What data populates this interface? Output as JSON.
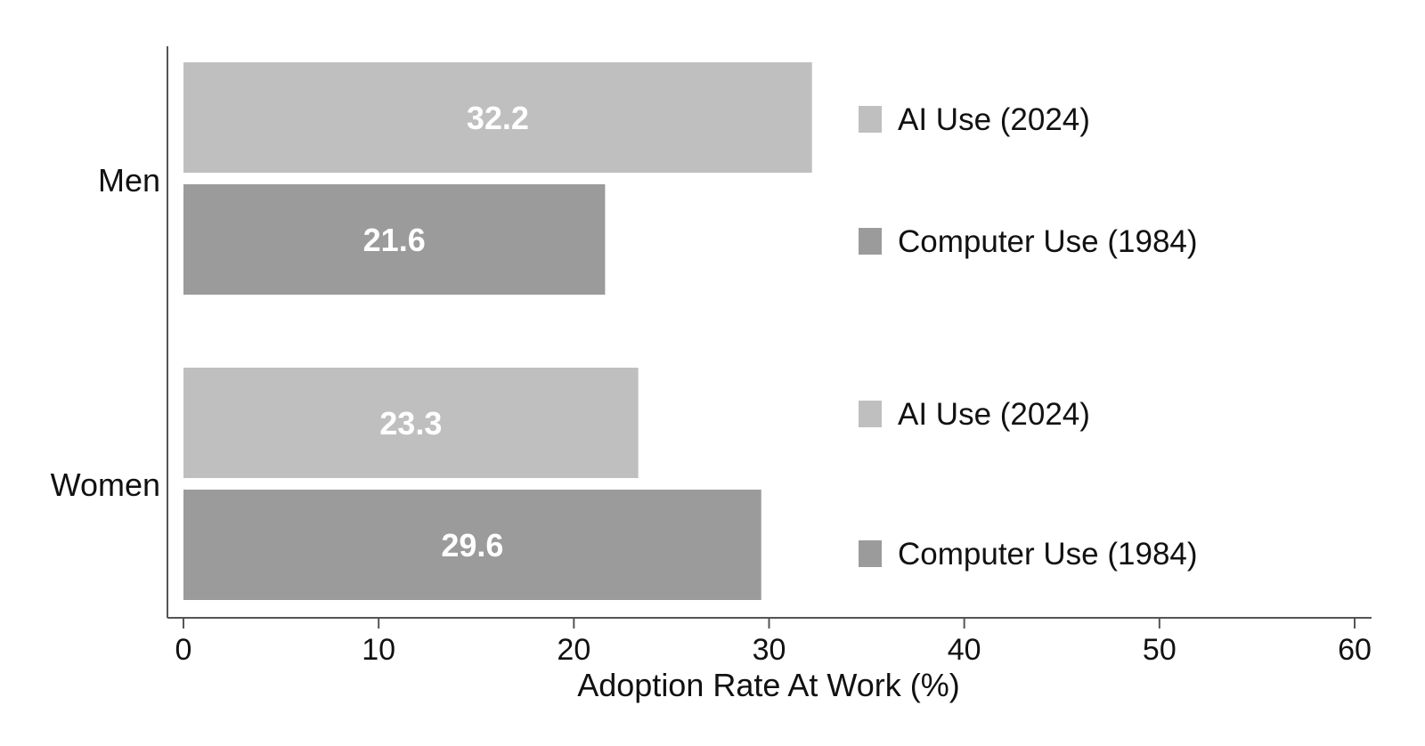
{
  "chart_data": {
    "type": "bar",
    "orientation": "horizontal",
    "categories": [
      "Men",
      "Women"
    ],
    "series": [
      {
        "name": "AI Use (2024)",
        "values": [
          32.2,
          23.3
        ],
        "labels": [
          "32.2",
          "23.3"
        ],
        "color": "#bfbfbf"
      },
      {
        "name": "Computer Use (1984)",
        "values": [
          21.6,
          29.6
        ],
        "labels": [
          "21.6",
          "29.6"
        ],
        "color": "#9b9b9b"
      }
    ],
    "xlabel": "Adoption Rate At Work (%)",
    "ylabel": "",
    "xlim": [
      0,
      60
    ],
    "xticks": [
      "0",
      "10",
      "20",
      "30",
      "40",
      "50",
      "60"
    ],
    "grid": false,
    "legend": "right of bars, repeated per category",
    "value_label_color": "#ffffff",
    "axis_color": "#555555"
  }
}
